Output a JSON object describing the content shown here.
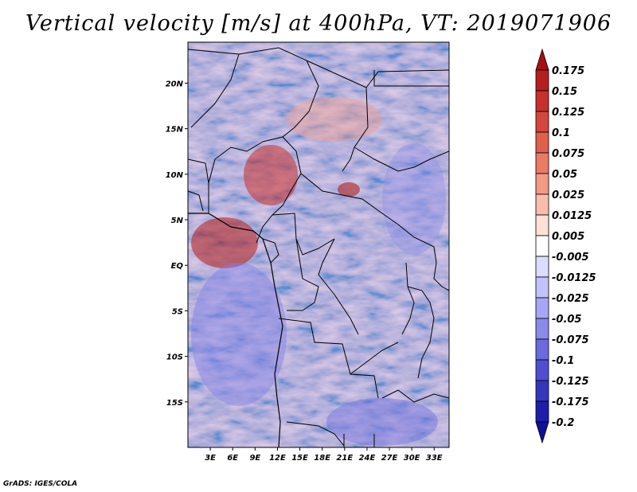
{
  "title": "Vertical velocity [m/s] at 400hPa, VT: 2019071906",
  "footer": "GrADS: IGES/COLA",
  "map": {
    "lat_labels": [
      "20N",
      "15N",
      "10N",
      "5N",
      "EQ",
      "5S",
      "10S",
      "15S"
    ],
    "lat_values": [
      20,
      15,
      10,
      5,
      0,
      -5,
      -10,
      -15
    ],
    "lon_labels": [
      "3E",
      "6E",
      "9E",
      "12E",
      "15E",
      "18E",
      "21E",
      "24E",
      "27E",
      "30E",
      "33E"
    ],
    "lon_values": [
      3,
      6,
      9,
      12,
      15,
      18,
      21,
      24,
      27,
      30,
      33
    ],
    "lat_range": [
      -20,
      24.5
    ],
    "lon_range": [
      0,
      35
    ]
  },
  "colorbar": {
    "labels": [
      "0.175",
      "0.15",
      "0.125",
      "0.1",
      "0.075",
      "0.05",
      "0.025",
      "0.0125",
      "0.005",
      "-0.005",
      "-0.0125",
      "-0.025",
      "-0.05",
      "-0.075",
      "-0.1",
      "-0.125",
      "-0.175",
      "-0.2"
    ],
    "colors": [
      "#a50f15",
      "#b51f22",
      "#c6312e",
      "#d4473c",
      "#e0604d",
      "#ea7b64",
      "#f29a85",
      "#f8bdad",
      "#fde0d6",
      "#ffffff",
      "#dcdcff",
      "#c3c3fb",
      "#a6a6f5",
      "#8a8aeb",
      "#6b6bde",
      "#4f4fcf",
      "#3535be",
      "#1e1eaa",
      "#10109a"
    ]
  }
}
